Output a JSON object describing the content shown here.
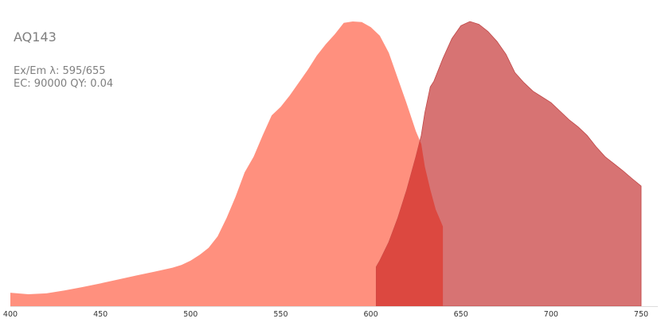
{
  "chart_data": {
    "type": "area",
    "title": "AQ143",
    "info_line_1": "Ex/Em λ: 595/655",
    "info_line_2": "EC: 90000  QY: 0.04",
    "xlabel": "",
    "ylabel": "",
    "xlim": [
      400,
      750
    ],
    "ylim": [
      0,
      1
    ],
    "x_ticks": [
      400,
      450,
      500,
      550,
      600,
      650,
      700,
      750
    ],
    "grid": false,
    "colors": {
      "excitation_fill": "#ff907e",
      "emission_fill": "#d77373",
      "emission_stroke": "#c04848",
      "overlap_fill": "#dc4840",
      "axis": "#dddddd"
    },
    "series": [
      {
        "points": [
          [
            400,
            0.047
          ],
          [
            410,
            0.042
          ],
          [
            420,
            0.045
          ],
          [
            430,
            0.055
          ],
          [
            440,
            0.067
          ],
          [
            450,
            0.08
          ],
          [
            460,
            0.094
          ],
          [
            470,
            0.108
          ],
          [
            480,
            0.121
          ],
          [
            490,
            0.135
          ],
          [
            495,
            0.145
          ],
          [
            500,
            0.16
          ],
          [
            505,
            0.18
          ],
          [
            510,
            0.205
          ],
          [
            515,
            0.245
          ],
          [
            520,
            0.31
          ],
          [
            525,
            0.385
          ],
          [
            530,
            0.47
          ],
          [
            535,
            0.525
          ],
          [
            540,
            0.6
          ],
          [
            545,
            0.67
          ],
          [
            550,
            0.7
          ],
          [
            555,
            0.74
          ],
          [
            560,
            0.785
          ],
          [
            565,
            0.83
          ],
          [
            570,
            0.88
          ],
          [
            575,
            0.92
          ],
          [
            580,
            0.955
          ],
          [
            585,
            0.995
          ],
          [
            590,
            1.0
          ],
          [
            595,
            0.998
          ],
          [
            600,
            0.98
          ],
          [
            605,
            0.95
          ],
          [
            610,
            0.89
          ],
          [
            615,
            0.8
          ],
          [
            620,
            0.71
          ],
          [
            625,
            0.615
          ],
          [
            628,
            0.57
          ],
          [
            630,
            0.49
          ],
          [
            633,
            0.41
          ],
          [
            636,
            0.34
          ],
          [
            640,
            0.28
          ],
          [
            640,
            0.25
          ]
        ]
      },
      {
        "points": [
          [
            603,
            0.138
          ],
          [
            605,
            0.16
          ],
          [
            610,
            0.225
          ],
          [
            615,
            0.31
          ],
          [
            620,
            0.41
          ],
          [
            625,
            0.525
          ],
          [
            628,
            0.6
          ],
          [
            630,
            0.68
          ],
          [
            633,
            0.77
          ],
          [
            635,
            0.79
          ],
          [
            640,
            0.87
          ],
          [
            645,
            0.94
          ],
          [
            650,
            0.985
          ],
          [
            655,
            1.0
          ],
          [
            660,
            0.99
          ],
          [
            665,
            0.965
          ],
          [
            670,
            0.93
          ],
          [
            675,
            0.885
          ],
          [
            680,
            0.82
          ],
          [
            685,
            0.785
          ],
          [
            690,
            0.755
          ],
          [
            695,
            0.735
          ],
          [
            700,
            0.715
          ],
          [
            705,
            0.685
          ],
          [
            710,
            0.655
          ],
          [
            715,
            0.63
          ],
          [
            720,
            0.6
          ],
          [
            725,
            0.56
          ],
          [
            730,
            0.525
          ],
          [
            735,
            0.5
          ],
          [
            740,
            0.475
          ],
          [
            745,
            0.448
          ],
          [
            750,
            0.422
          ]
        ]
      }
    ]
  }
}
